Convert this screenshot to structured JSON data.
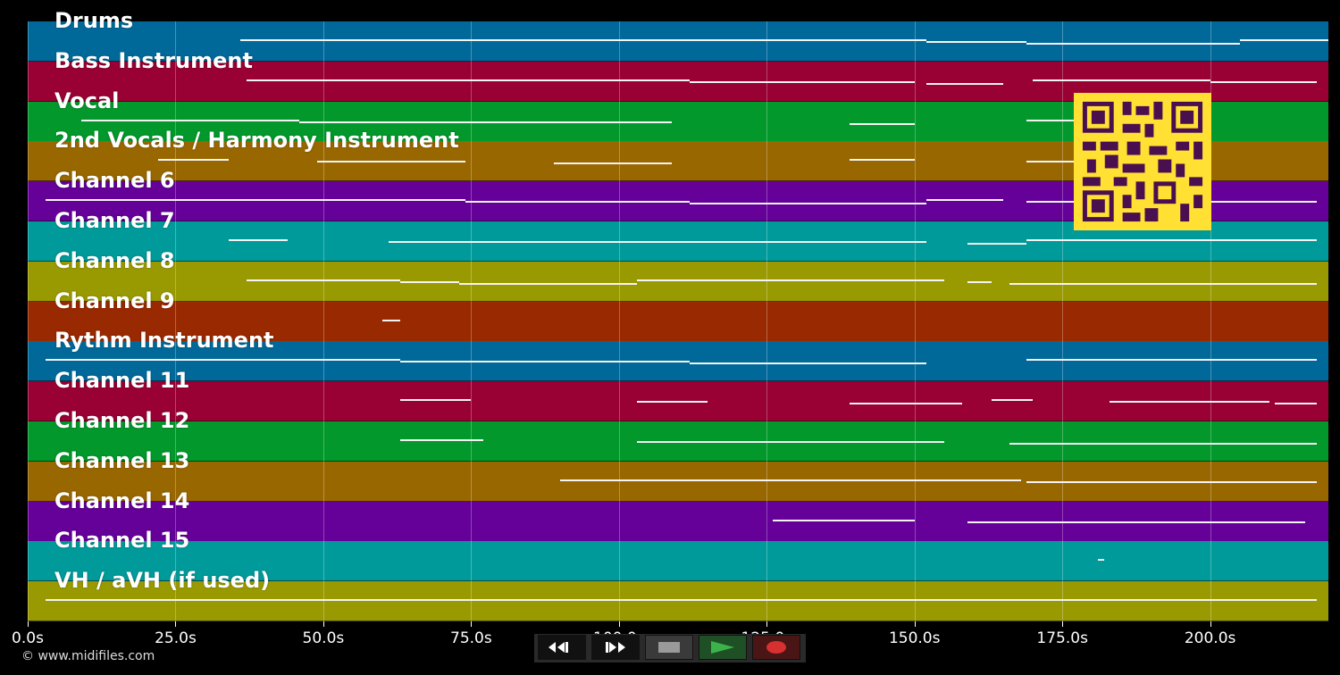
{
  "tracks": [
    {
      "name": "Drums",
      "color": "#01699a"
    },
    {
      "name": "Bass Instrument",
      "color": "#990034"
    },
    {
      "name": "Vocal",
      "color": "#02982b"
    },
    {
      "name": "2nd Vocals / Harmony Instrument",
      "color": "#996700"
    },
    {
      "name": "Channel 6",
      "color": "#650099"
    },
    {
      "name": "Channel 7",
      "color": "#019a9a"
    },
    {
      "name": "Channel 8",
      "color": "#999a02"
    },
    {
      "name": "Channel 9",
      "color": "#992900"
    },
    {
      "name": "Rythm Instrument",
      "color": "#01699a"
    },
    {
      "name": "Channel 11",
      "color": "#990034"
    },
    {
      "name": "Channel 12",
      "color": "#02982b"
    },
    {
      "name": "Channel 13",
      "color": "#996700"
    },
    {
      "name": "Channel 14",
      "color": "#650099"
    },
    {
      "name": "Channel 15",
      "color": "#019a9a"
    },
    {
      "name": "VH / aVH (if used)",
      "color": "#999a02"
    }
  ],
  "time_axis": {
    "max_seconds": 220,
    "ticks": [
      {
        "value": 0,
        "label": "0.0s"
      },
      {
        "value": 25,
        "label": "25.0s"
      },
      {
        "value": 50,
        "label": "50.0s"
      },
      {
        "value": 75,
        "label": "75.0s"
      },
      {
        "value": 100,
        "label": "100.0s"
      },
      {
        "value": 125,
        "label": "125.0s"
      },
      {
        "value": 150,
        "label": "150.0s"
      },
      {
        "value": 175,
        "label": "175.0s"
      },
      {
        "value": 200,
        "label": "200.0s"
      }
    ]
  },
  "copyright": "© www.midifiles.com",
  "transport": {
    "rewind_icon": "rewind-icon",
    "forward_icon": "fast-forward-icon",
    "stop_icon": "stop-icon",
    "play_icon": "play-icon",
    "record_icon": "record-icon",
    "play_color": "#3cb34a",
    "record_color": "#d63030"
  },
  "notes": [
    [
      [
        36,
        152
      ],
      [
        152,
        169
      ],
      [
        169,
        205
      ],
      [
        205,
        220
      ]
    ],
    [
      [
        37,
        112
      ],
      [
        112,
        150
      ],
      [
        152,
        165
      ],
      [
        170,
        200
      ],
      [
        200,
        218
      ]
    ],
    [
      [
        9,
        46
      ],
      [
        46,
        109
      ],
      [
        139,
        150
      ],
      [
        169,
        190
      ],
      [
        190,
        200
      ]
    ],
    [
      [
        22,
        34
      ],
      [
        49,
        74
      ],
      [
        89,
        109
      ],
      [
        139,
        150
      ],
      [
        169,
        190
      ],
      [
        190,
        200
      ]
    ],
    [
      [
        3,
        74
      ],
      [
        74,
        112
      ],
      [
        112,
        152
      ],
      [
        152,
        165
      ],
      [
        169,
        218
      ]
    ],
    [
      [
        34,
        44
      ],
      [
        61,
        152
      ],
      [
        159,
        169
      ],
      [
        169,
        218
      ]
    ],
    [
      [
        37,
        63
      ],
      [
        63,
        73
      ],
      [
        73,
        103
      ],
      [
        103,
        155
      ],
      [
        159,
        163
      ],
      [
        166,
        218
      ]
    ],
    [
      [
        60,
        63
      ]
    ],
    [
      [
        3,
        63
      ],
      [
        63,
        112
      ],
      [
        112,
        152
      ],
      [
        169,
        218
      ]
    ],
    [
      [
        63,
        75
      ],
      [
        103,
        115
      ],
      [
        139,
        158
      ],
      [
        163,
        170
      ],
      [
        183,
        210
      ],
      [
        211,
        218
      ]
    ],
    [
      [
        63,
        77
      ],
      [
        103,
        155
      ],
      [
        166,
        218
      ]
    ],
    [
      [
        90,
        168
      ],
      [
        169,
        218
      ]
    ],
    [
      [
        126,
        150
      ],
      [
        159,
        216
      ]
    ],
    [
      [
        181,
        182
      ]
    ],
    [
      [
        3,
        218
      ]
    ]
  ]
}
